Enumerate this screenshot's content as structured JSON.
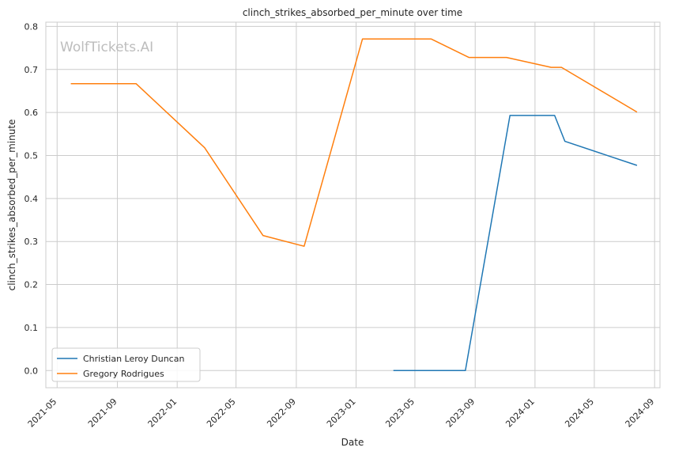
{
  "chart_data": {
    "type": "line",
    "title": "clinch_strikes_absorbed_per_minute over time",
    "xlabel": "Date",
    "ylabel": "clinch_strikes_absorbed_per_minute",
    "watermark": "WolfTickets.AI",
    "x_ticks": [
      "2021-05",
      "2021-09",
      "2022-01",
      "2022-05",
      "2022-09",
      "2023-01",
      "2023-05",
      "2023-09",
      "2024-01",
      "2024-05",
      "2024-09"
    ],
    "y_ticks": [
      "0.0",
      "0.1",
      "0.2",
      "0.3",
      "0.4",
      "0.5",
      "0.6",
      "0.7",
      "0.8"
    ],
    "xlim": [
      "2021-04-08",
      "2024-09-12"
    ],
    "ylim": [
      -0.04,
      0.81
    ],
    "grid": true,
    "legend_position": "lower-left",
    "series": [
      {
        "name": "Christian Leroy Duncan",
        "color": "#1f77b4",
        "points": [
          [
            "2023-03-18",
            0.0
          ],
          [
            "2023-08-12",
            0.0
          ],
          [
            "2023-11-11",
            0.593
          ],
          [
            "2024-02-10",
            0.593
          ],
          [
            "2024-03-02",
            0.533
          ],
          [
            "2024-07-27",
            0.477
          ]
        ]
      },
      {
        "name": "Gregory Rodrigues",
        "color": "#ff7f0e",
        "points": [
          [
            "2021-05-29",
            0.667
          ],
          [
            "2021-10-09",
            0.667
          ],
          [
            "2022-02-26",
            0.518
          ],
          [
            "2022-06-25",
            0.314
          ],
          [
            "2022-09-17",
            0.289
          ],
          [
            "2023-01-14",
            0.771
          ],
          [
            "2023-06-03",
            0.771
          ],
          [
            "2023-08-19",
            0.728
          ],
          [
            "2023-11-04",
            0.728
          ],
          [
            "2024-02-03",
            0.705
          ],
          [
            "2024-02-24",
            0.705
          ],
          [
            "2024-07-27",
            0.601
          ]
        ]
      }
    ]
  }
}
